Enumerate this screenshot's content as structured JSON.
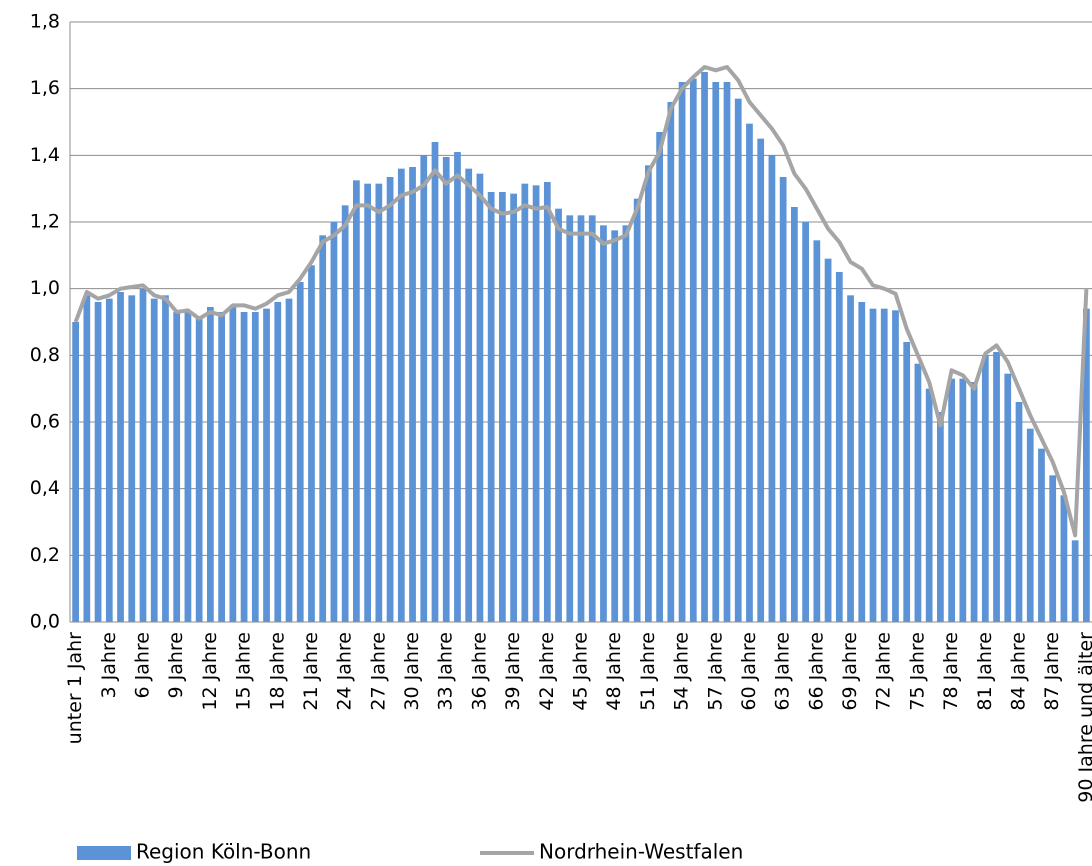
{
  "chart_data": {
    "type": "bar_line",
    "categories": [
      "unter 1 Jahr",
      null,
      null,
      "3 Jahre",
      null,
      null,
      "6 Jahre",
      null,
      null,
      "9 Jahre",
      null,
      null,
      "12 Jahre",
      null,
      null,
      "15 Jahre",
      null,
      null,
      "18 Jahre",
      null,
      null,
      "21 Jahre",
      null,
      null,
      "24 Jahre",
      null,
      null,
      "27 Jahre",
      null,
      null,
      "30 Jahre",
      null,
      null,
      "33 Jahre",
      null,
      null,
      "36 Jahre",
      null,
      null,
      "39 Jahre",
      null,
      null,
      "42 Jahre",
      null,
      null,
      "45 Jahre",
      null,
      null,
      "48 Jahre",
      null,
      null,
      "51 Jahre",
      null,
      null,
      "54 Jahre",
      null,
      null,
      "57 Jahre",
      null,
      null,
      "60 Jahre",
      null,
      null,
      "63 Jahre",
      null,
      null,
      "66 Jahre",
      null,
      null,
      "69 Jahre",
      null,
      null,
      "72 Jahre",
      null,
      null,
      "75 Jahre",
      null,
      null,
      "78 Jahre",
      null,
      null,
      "81 Jahre",
      null,
      null,
      "84 Jahre",
      null,
      null,
      "87 Jahre",
      null,
      null,
      "90 Jahre und älter"
    ],
    "series": [
      {
        "name": "Region Köln-Bonn",
        "kind": "bar",
        "color": "#5b93d6",
        "values": [
          0.9,
          0.98,
          0.96,
          0.97,
          0.99,
          0.98,
          1.0,
          0.97,
          0.98,
          0.93,
          0.93,
          0.91,
          0.945,
          0.93,
          0.95,
          0.93,
          0.93,
          0.94,
          0.96,
          0.97,
          1.02,
          1.07,
          1.16,
          1.2,
          1.25,
          1.325,
          1.315,
          1.315,
          1.335,
          1.36,
          1.365,
          1.4,
          1.44,
          1.395,
          1.41,
          1.36,
          1.345,
          1.29,
          1.29,
          1.285,
          1.315,
          1.31,
          1.32,
          1.24,
          1.22,
          1.22,
          1.22,
          1.19,
          1.175,
          1.19,
          1.27,
          1.37,
          1.47,
          1.56,
          1.62,
          1.63,
          1.65,
          1.62,
          1.62,
          1.57,
          1.495,
          1.45,
          1.4,
          1.335,
          1.245,
          1.2,
          1.145,
          1.09,
          1.05,
          0.98,
          0.96,
          0.94,
          0.94,
          0.935,
          0.84,
          0.775,
          0.7,
          0.63,
          0.73,
          0.73,
          0.72,
          0.8,
          0.81,
          0.745,
          0.66,
          0.58,
          0.52,
          0.44,
          0.38,
          0.245,
          0.94
        ]
      },
      {
        "name": "Nordrhein-Westfalen",
        "kind": "line",
        "color": "#a5a5a5",
        "values": [
          0.9,
          0.99,
          0.97,
          0.98,
          1.0,
          1.005,
          1.01,
          0.98,
          0.97,
          0.93,
          0.935,
          0.91,
          0.93,
          0.92,
          0.95,
          0.95,
          0.94,
          0.955,
          0.98,
          0.99,
          1.03,
          1.08,
          1.14,
          1.16,
          1.19,
          1.25,
          1.25,
          1.23,
          1.25,
          1.28,
          1.29,
          1.31,
          1.355,
          1.315,
          1.34,
          1.31,
          1.28,
          1.24,
          1.225,
          1.23,
          1.25,
          1.24,
          1.245,
          1.18,
          1.165,
          1.165,
          1.165,
          1.135,
          1.145,
          1.16,
          1.24,
          1.35,
          1.41,
          1.54,
          1.6,
          1.635,
          1.665,
          1.655,
          1.665,
          1.625,
          1.56,
          1.52,
          1.48,
          1.43,
          1.345,
          1.3,
          1.24,
          1.18,
          1.14,
          1.08,
          1.06,
          1.01,
          1.0,
          0.985,
          0.88,
          0.8,
          0.72,
          0.59,
          0.755,
          0.74,
          0.7,
          0.805,
          0.83,
          0.78,
          0.7,
          0.62,
          0.55,
          0.48,
          0.39,
          0.26,
          1.0
        ]
      }
    ],
    "ylim": [
      0,
      1.8
    ],
    "yticks": [
      {
        "value": 0,
        "label": "0,0"
      },
      {
        "value": 0.2,
        "label": "0,2"
      },
      {
        "value": 0.4,
        "label": "0,4"
      },
      {
        "value": 0.6,
        "label": "0,6"
      },
      {
        "value": 0.8,
        "label": "0,8"
      },
      {
        "value": 1.0,
        "label": "1,0"
      },
      {
        "value": 1.2,
        "label": "1,2"
      },
      {
        "value": 1.4,
        "label": "1,4"
      },
      {
        "value": 1.6,
        "label": "1,6"
      },
      {
        "value": 1.8,
        "label": "1,8"
      }
    ],
    "grid": true,
    "legend": "bottom"
  }
}
